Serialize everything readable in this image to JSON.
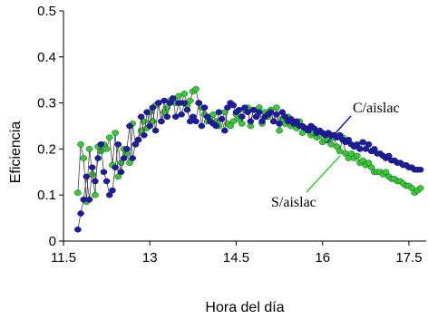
{
  "chart_data": {
    "type": "scatter",
    "xlabel": "Hora del día",
    "ylabel": "Eficiencia",
    "xlim": [
      11.5,
      17.8
    ],
    "ylim": [
      0,
      0.5
    ],
    "xticks": [
      "11.5",
      "13",
      "14.5",
      "16",
      "17.5"
    ],
    "yticks": [
      "0",
      "0.1",
      "0.2",
      "0.3",
      "0.4",
      "0.5"
    ],
    "grid": false,
    "annotations": [
      "C/aislac",
      "S/aislac"
    ],
    "series": [
      {
        "name": "C/aislac",
        "color": "#1a1aa6",
        "points": [
          [
            11.75,
            0.025
          ],
          [
            11.8,
            0.06
          ],
          [
            11.85,
            0.09
          ],
          [
            11.9,
            0.14
          ],
          [
            11.95,
            0.09
          ],
          [
            12.0,
            0.16
          ],
          [
            12.05,
            0.13
          ],
          [
            12.1,
            0.18
          ],
          [
            12.15,
            0.21
          ],
          [
            12.2,
            0.15
          ],
          [
            12.25,
            0.13
          ],
          [
            12.3,
            0.1
          ],
          [
            12.35,
            0.11
          ],
          [
            12.4,
            0.16
          ],
          [
            12.45,
            0.21
          ],
          [
            12.5,
            0.15
          ],
          [
            12.55,
            0.18
          ],
          [
            12.6,
            0.2
          ],
          [
            12.65,
            0.25
          ],
          [
            12.7,
            0.18
          ],
          [
            12.75,
            0.21
          ],
          [
            12.8,
            0.22
          ],
          [
            12.85,
            0.27
          ],
          [
            12.9,
            0.23
          ],
          [
            12.95,
            0.28
          ],
          [
            13.0,
            0.25
          ],
          [
            13.05,
            0.29
          ],
          [
            13.1,
            0.24
          ],
          [
            13.15,
            0.3
          ],
          [
            13.2,
            0.26
          ],
          [
            13.25,
            0.305
          ],
          [
            13.3,
            0.27
          ],
          [
            13.35,
            0.3
          ],
          [
            13.4,
            0.31
          ],
          [
            13.45,
            0.27
          ],
          [
            13.5,
            0.3
          ],
          [
            13.55,
            0.275
          ],
          [
            13.6,
            0.3
          ],
          [
            13.65,
            0.285
          ],
          [
            13.7,
            0.26
          ],
          [
            13.75,
            0.27
          ],
          [
            13.8,
            0.26
          ],
          [
            13.85,
            0.3
          ],
          [
            13.9,
            0.25
          ],
          [
            13.95,
            0.29
          ],
          [
            14.0,
            0.27
          ],
          [
            14.05,
            0.26
          ],
          [
            14.1,
            0.255
          ],
          [
            14.15,
            0.25
          ],
          [
            14.2,
            0.28
          ],
          [
            14.25,
            0.265
          ],
          [
            14.3,
            0.24
          ],
          [
            14.35,
            0.29
          ],
          [
            14.4,
            0.3
          ],
          [
            14.45,
            0.295
          ],
          [
            14.5,
            0.28
          ],
          [
            14.55,
            0.285
          ],
          [
            14.6,
            0.27
          ],
          [
            14.65,
            0.29
          ],
          [
            14.7,
            0.28
          ],
          [
            14.75,
            0.26
          ],
          [
            14.8,
            0.285
          ],
          [
            14.85,
            0.27
          ],
          [
            14.9,
            0.28
          ],
          [
            14.95,
            0.26
          ],
          [
            15.0,
            0.27
          ],
          [
            15.05,
            0.275
          ],
          [
            15.1,
            0.28
          ],
          [
            15.15,
            0.26
          ],
          [
            15.2,
            0.275
          ],
          [
            15.25,
            0.255
          ],
          [
            15.3,
            0.28
          ],
          [
            15.35,
            0.27
          ],
          [
            15.4,
            0.26
          ],
          [
            15.45,
            0.265
          ],
          [
            15.5,
            0.255
          ],
          [
            15.55,
            0.26
          ],
          [
            15.6,
            0.25
          ],
          [
            15.65,
            0.25
          ],
          [
            15.7,
            0.245
          ],
          [
            15.75,
            0.24
          ],
          [
            15.8,
            0.25
          ],
          [
            15.85,
            0.245
          ],
          [
            15.9,
            0.235
          ],
          [
            15.95,
            0.24
          ],
          [
            16.0,
            0.235
          ],
          [
            16.05,
            0.23
          ],
          [
            16.1,
            0.235
          ],
          [
            16.15,
            0.23
          ],
          [
            16.2,
            0.23
          ],
          [
            16.25,
            0.225
          ],
          [
            16.3,
            0.23
          ],
          [
            16.35,
            0.22
          ],
          [
            16.4,
            0.215
          ],
          [
            16.45,
            0.22
          ],
          [
            16.5,
            0.21
          ],
          [
            16.55,
            0.205
          ],
          [
            16.6,
            0.21
          ],
          [
            16.65,
            0.2
          ],
          [
            16.7,
            0.215
          ],
          [
            16.75,
            0.2
          ],
          [
            16.8,
            0.21
          ],
          [
            16.85,
            0.195
          ],
          [
            16.9,
            0.2
          ],
          [
            16.95,
            0.19
          ],
          [
            17.0,
            0.19
          ],
          [
            17.05,
            0.185
          ],
          [
            17.1,
            0.18
          ],
          [
            17.15,
            0.185
          ],
          [
            17.2,
            0.175
          ],
          [
            17.25,
            0.175
          ],
          [
            17.3,
            0.17
          ],
          [
            17.35,
            0.17
          ],
          [
            17.4,
            0.165
          ],
          [
            17.45,
            0.165
          ],
          [
            17.5,
            0.16
          ],
          [
            17.55,
            0.16
          ],
          [
            17.6,
            0.155
          ],
          [
            17.65,
            0.155
          ],
          [
            17.7,
            0.155
          ]
        ]
      },
      {
        "name": "S/aislac",
        "color": "#33cc33",
        "points": [
          [
            11.75,
            0.105
          ],
          [
            11.8,
            0.21
          ],
          [
            11.85,
            0.18
          ],
          [
            11.9,
            0.085
          ],
          [
            11.95,
            0.2
          ],
          [
            12.0,
            0.145
          ],
          [
            12.05,
            0.1
          ],
          [
            12.1,
            0.205
          ],
          [
            12.15,
            0.195
          ],
          [
            12.2,
            0.21
          ],
          [
            12.25,
            0.2
          ],
          [
            12.3,
            0.225
          ],
          [
            12.35,
            0.165
          ],
          [
            12.4,
            0.235
          ],
          [
            12.45,
            0.14
          ],
          [
            12.5,
            0.17
          ],
          [
            12.55,
            0.2
          ],
          [
            12.6,
            0.19
          ],
          [
            12.65,
            0.17
          ],
          [
            12.7,
            0.255
          ],
          [
            12.75,
            0.21
          ],
          [
            12.8,
            0.22
          ],
          [
            12.85,
            0.24
          ],
          [
            12.9,
            0.26
          ],
          [
            12.95,
            0.245
          ],
          [
            13.0,
            0.28
          ],
          [
            13.05,
            0.26
          ],
          [
            13.1,
            0.295
          ],
          [
            13.15,
            0.3
          ],
          [
            13.2,
            0.26
          ],
          [
            13.25,
            0.28
          ],
          [
            13.3,
            0.29
          ],
          [
            13.35,
            0.305
          ],
          [
            13.4,
            0.31
          ],
          [
            13.45,
            0.3
          ],
          [
            13.5,
            0.315
          ],
          [
            13.55,
            0.3
          ],
          [
            13.6,
            0.32
          ],
          [
            13.65,
            0.295
          ],
          [
            13.7,
            0.305
          ],
          [
            13.75,
            0.325
          ],
          [
            13.8,
            0.33
          ],
          [
            13.85,
            0.3
          ],
          [
            13.9,
            0.29
          ],
          [
            13.95,
            0.275
          ],
          [
            14.0,
            0.26
          ],
          [
            14.05,
            0.27
          ],
          [
            14.1,
            0.275
          ],
          [
            14.15,
            0.26
          ],
          [
            14.2,
            0.25
          ],
          [
            14.25,
            0.265
          ],
          [
            14.3,
            0.28
          ],
          [
            14.35,
            0.255
          ],
          [
            14.4,
            0.25
          ],
          [
            14.45,
            0.26
          ],
          [
            14.5,
            0.275
          ],
          [
            14.55,
            0.265
          ],
          [
            14.6,
            0.255
          ],
          [
            14.65,
            0.285
          ],
          [
            14.7,
            0.29
          ],
          [
            14.75,
            0.25
          ],
          [
            14.8,
            0.285
          ],
          [
            14.85,
            0.27
          ],
          [
            14.9,
            0.29
          ],
          [
            14.95,
            0.255
          ],
          [
            15.0,
            0.28
          ],
          [
            15.05,
            0.27
          ],
          [
            15.1,
            0.285
          ],
          [
            15.15,
            0.26
          ],
          [
            15.2,
            0.29
          ],
          [
            15.25,
            0.24
          ],
          [
            15.3,
            0.265
          ],
          [
            15.35,
            0.255
          ],
          [
            15.4,
            0.27
          ],
          [
            15.45,
            0.25
          ],
          [
            15.5,
            0.26
          ],
          [
            15.55,
            0.245
          ],
          [
            15.6,
            0.26
          ],
          [
            15.65,
            0.235
          ],
          [
            15.7,
            0.245
          ],
          [
            15.75,
            0.24
          ],
          [
            15.8,
            0.23
          ],
          [
            15.85,
            0.235
          ],
          [
            15.9,
            0.225
          ],
          [
            15.95,
            0.23
          ],
          [
            16.0,
            0.215
          ],
          [
            16.05,
            0.22
          ],
          [
            16.1,
            0.22
          ],
          [
            16.15,
            0.21
          ],
          [
            16.2,
            0.225
          ],
          [
            16.25,
            0.205
          ],
          [
            16.3,
            0.195
          ],
          [
            16.35,
            0.225
          ],
          [
            16.4,
            0.19
          ],
          [
            16.45,
            0.18
          ],
          [
            16.5,
            0.19
          ],
          [
            16.55,
            0.18
          ],
          [
            16.6,
            0.185
          ],
          [
            16.65,
            0.17
          ],
          [
            16.7,
            0.175
          ],
          [
            16.75,
            0.165
          ],
          [
            16.8,
            0.17
          ],
          [
            16.85,
            0.16
          ],
          [
            16.9,
            0.15
          ],
          [
            16.95,
            0.15
          ],
          [
            17.0,
            0.15
          ],
          [
            17.05,
            0.145
          ],
          [
            17.1,
            0.15
          ],
          [
            17.15,
            0.14
          ],
          [
            17.2,
            0.135
          ],
          [
            17.25,
            0.135
          ],
          [
            17.3,
            0.13
          ],
          [
            17.35,
            0.13
          ],
          [
            17.4,
            0.125
          ],
          [
            17.45,
            0.12
          ],
          [
            17.5,
            0.12
          ],
          [
            17.55,
            0.115
          ],
          [
            17.6,
            0.105
          ],
          [
            17.65,
            0.11
          ],
          [
            17.7,
            0.115
          ]
        ]
      }
    ]
  }
}
